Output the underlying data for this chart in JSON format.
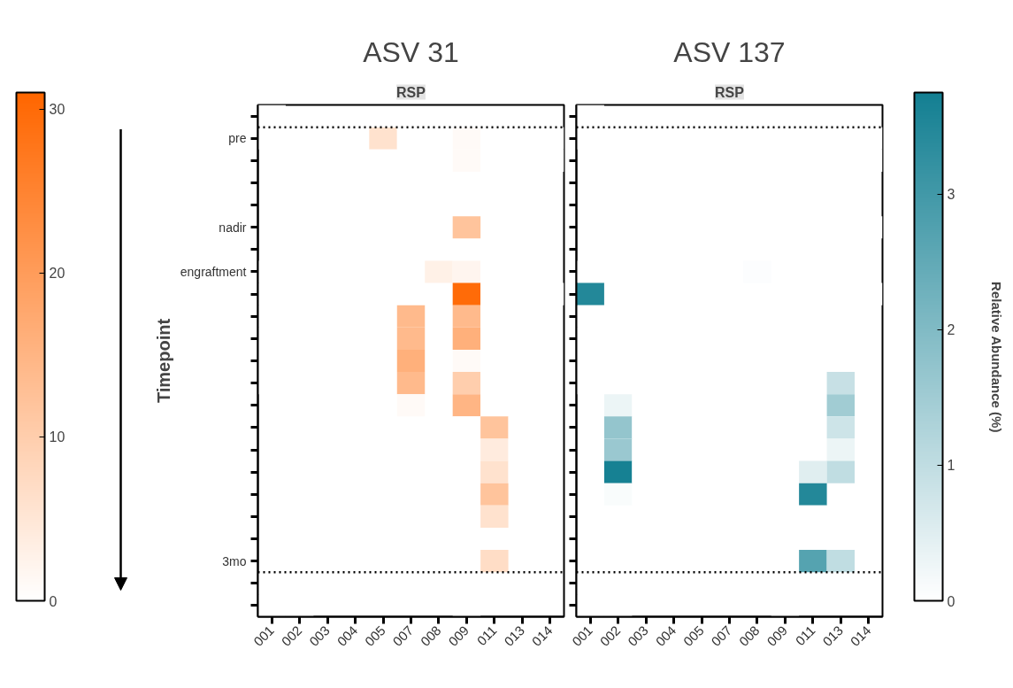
{
  "chart_data": [
    {
      "type": "heatmap",
      "title": "ASV 31",
      "subtitle": "RSP",
      "ylabel": "Timepoint",
      "color": "#ff6600",
      "clim": [
        0,
        31
      ],
      "cticks": [
        0,
        10,
        20,
        30
      ],
      "grid": false,
      "categories": [
        "001",
        "002",
        "003",
        "004",
        "005",
        "007",
        "008",
        "009",
        "011",
        "013",
        "014"
      ],
      "y_categories": [
        null,
        "pre",
        null,
        null,
        null,
        "nadir",
        null,
        "engraftment",
        null,
        null,
        null,
        null,
        null,
        null,
        null,
        null,
        null,
        null,
        null,
        null,
        "3mo",
        null,
        null
      ],
      "cells": [
        [
          0,
          null,
          null,
          null,
          null,
          null,
          null,
          null,
          null,
          null,
          null
        ],
        [
          0,
          null,
          0,
          0,
          6,
          0,
          0,
          1,
          0,
          0,
          0
        ],
        [
          null,
          null,
          0,
          null,
          0,
          0,
          0,
          1,
          0,
          0,
          0
        ],
        [
          null,
          null,
          0,
          null,
          null,
          null,
          null,
          null,
          null,
          null,
          null
        ],
        [
          null,
          null,
          0,
          null,
          null,
          null,
          null,
          null,
          null,
          null,
          null
        ],
        [
          null,
          null,
          0,
          0,
          0,
          0,
          0,
          12,
          null,
          null,
          null
        ],
        [
          null,
          null,
          0,
          null,
          null,
          null,
          null,
          null,
          null,
          null,
          null
        ],
        [
          0,
          0,
          0,
          0,
          0,
          0,
          3,
          2,
          0,
          0,
          null
        ],
        [
          0,
          0,
          0,
          null,
          0,
          0,
          null,
          30,
          0,
          0,
          0
        ],
        [
          0,
          0,
          0,
          null,
          0,
          14,
          null,
          14,
          0,
          0,
          null
        ],
        [
          0,
          0,
          0,
          null,
          0,
          14,
          null,
          16,
          0,
          0,
          null
        ],
        [
          0,
          0,
          0,
          null,
          0,
          16,
          null,
          1,
          0,
          0,
          null
        ],
        [
          0,
          0,
          0,
          null,
          0,
          14,
          null,
          10,
          0,
          0,
          null
        ],
        [
          null,
          0,
          0,
          null,
          0,
          1,
          null,
          15,
          0,
          0,
          null
        ],
        [
          null,
          0,
          0,
          null,
          null,
          null,
          null,
          0,
          12,
          0,
          null
        ],
        [
          null,
          0,
          0,
          null,
          null,
          null,
          null,
          0,
          4,
          0,
          null
        ],
        [
          null,
          0,
          0,
          null,
          null,
          null,
          null,
          0,
          6,
          0,
          null
        ],
        [
          null,
          0,
          null,
          null,
          null,
          null,
          null,
          0,
          12,
          null,
          null
        ],
        [
          null,
          null,
          null,
          null,
          null,
          null,
          null,
          0,
          6,
          null,
          null
        ],
        [
          null,
          null,
          null,
          null,
          null,
          null,
          null,
          0,
          null,
          null,
          null
        ],
        [
          null,
          null,
          null,
          null,
          null,
          null,
          null,
          0,
          7,
          null,
          null
        ],
        [
          0,
          0,
          0,
          null,
          null,
          null,
          null,
          0,
          null,
          null,
          null
        ],
        [
          0,
          0,
          null,
          null,
          null,
          null,
          null,
          0,
          null,
          null,
          null
        ]
      ]
    },
    {
      "type": "heatmap",
      "title": "ASV 137",
      "subtitle": "RSP",
      "clabel": "Relative Abundance (%)",
      "color": "#137f92",
      "clim": [
        0,
        3.75
      ],
      "cticks": [
        0,
        1,
        2,
        3
      ],
      "grid": false,
      "tick_labels": "x",
      "categories": [
        "001",
        "002",
        "003",
        "004",
        "005",
        "007",
        "008",
        "009",
        "011",
        "013",
        "014"
      ],
      "y_categories": [
        null,
        null,
        null,
        null,
        null,
        null,
        null,
        null,
        null,
        null,
        null,
        null,
        null,
        null,
        null,
        null,
        null,
        null,
        null,
        null,
        null,
        null,
        null
      ],
      "cells": [
        [
          0,
          null,
          null,
          null,
          null,
          null,
          null,
          null,
          null,
          null,
          null
        ],
        [
          0,
          null,
          0,
          0,
          0,
          0,
          0,
          0,
          0,
          0,
          0
        ],
        [
          null,
          null,
          0,
          null,
          0,
          0,
          0,
          0,
          0,
          0,
          0
        ],
        [
          null,
          null,
          0,
          null,
          null,
          null,
          null,
          null,
          null,
          null,
          null
        ],
        [
          null,
          null,
          0,
          null,
          null,
          null,
          null,
          null,
          null,
          null,
          null
        ],
        [
          null,
          null,
          0,
          0,
          0,
          0,
          0,
          0,
          null,
          0,
          0
        ],
        [
          null,
          null,
          0,
          null,
          null,
          null,
          null,
          null,
          null,
          null,
          null
        ],
        [
          0,
          0,
          0,
          0,
          0,
          0,
          0.05,
          0,
          0,
          0,
          null
        ],
        [
          3.5,
          0,
          0,
          null,
          0,
          0,
          null,
          0,
          0,
          0,
          0
        ],
        [
          0,
          0,
          0,
          null,
          0,
          0,
          null,
          0,
          0,
          0,
          null
        ],
        [
          0,
          0,
          0,
          null,
          0,
          0,
          null,
          0,
          0,
          0,
          null
        ],
        [
          0,
          0,
          0,
          null,
          0,
          0,
          null,
          0,
          0,
          0,
          null
        ],
        [
          0,
          0,
          0,
          null,
          0,
          0,
          null,
          0,
          0,
          0.9,
          null
        ],
        [
          null,
          0.3,
          0,
          null,
          0,
          0,
          null,
          0,
          0,
          1.5,
          null
        ],
        [
          null,
          1.7,
          0,
          null,
          null,
          null,
          null,
          0,
          0,
          0.8,
          null
        ],
        [
          null,
          1.6,
          0,
          null,
          null,
          null,
          null,
          0,
          0,
          0.3,
          null
        ],
        [
          null,
          3.7,
          0,
          null,
          null,
          null,
          null,
          0,
          0.5,
          1.0,
          null
        ],
        [
          null,
          0.1,
          null,
          null,
          null,
          null,
          null,
          0,
          3.5,
          null,
          null
        ],
        [
          null,
          null,
          null,
          null,
          null,
          null,
          null,
          0,
          0,
          null,
          null
        ],
        [
          null,
          null,
          null,
          null,
          null,
          null,
          null,
          0,
          null,
          null,
          null
        ],
        [
          null,
          null,
          null,
          null,
          null,
          null,
          null,
          0,
          2.7,
          1.0,
          null
        ],
        [
          0,
          0,
          0,
          null,
          null,
          null,
          null,
          0,
          null,
          null,
          null
        ],
        [
          0,
          0,
          null,
          null,
          null,
          null,
          null,
          0,
          null,
          null,
          null
        ]
      ]
    }
  ]
}
